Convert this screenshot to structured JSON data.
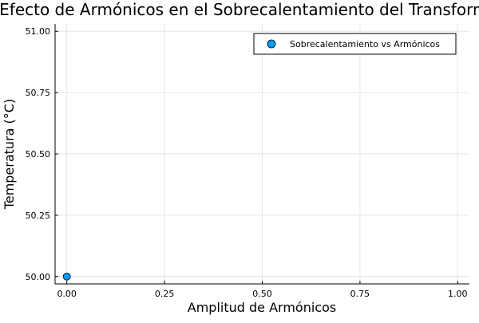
{
  "chart_data": {
    "type": "scatter",
    "title": "Efecto de Armónicos en el Sobrecalentamiento del Transformador",
    "xlabel": "Amplitud de Armónicos",
    "ylabel": "Temperatura (°C)",
    "xlim": [
      -0.03,
      1.03
    ],
    "ylim": [
      49.97,
      51.03
    ],
    "x_ticks": [
      0,
      0.25,
      0.5,
      0.75,
      1
    ],
    "x_tick_labels": [
      "0.00",
      "0.25",
      "0.50",
      "0.75",
      "1.00"
    ],
    "y_ticks": [
      50,
      50.25,
      50.5,
      50.75,
      51
    ],
    "y_tick_labels": [
      "50.00",
      "50.25",
      "50.50",
      "50.75",
      "51.00"
    ],
    "grid": true,
    "legend_position": "top-right",
    "series": [
      {
        "name": "Sobrecalentamiento vs Armónicos",
        "color": "#009af9",
        "points": [
          {
            "x": 0,
            "y": 50
          }
        ]
      }
    ]
  }
}
